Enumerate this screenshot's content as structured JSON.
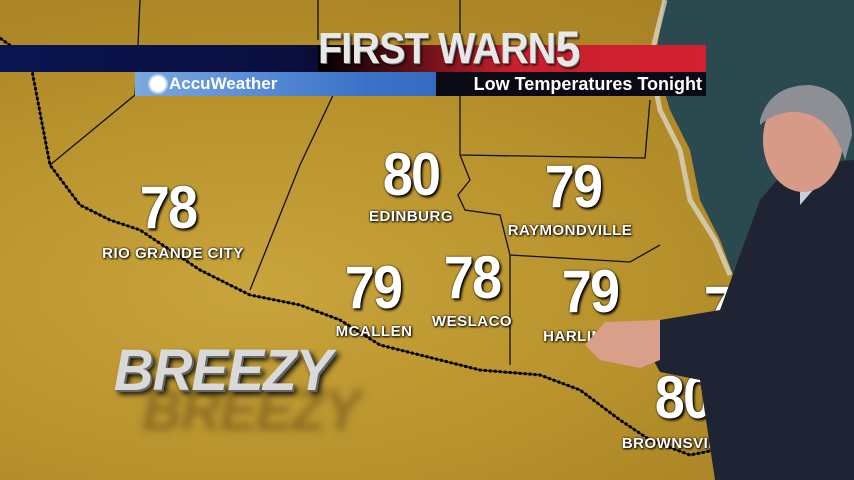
{
  "banner": {
    "brand": "FIRST WARN",
    "brand_number": "5",
    "provider": "AccuWeather",
    "provider_icon": "sun-icon",
    "title": "Low Temperatures Tonight"
  },
  "colors": {
    "land": "#b8922c",
    "sea": "#2a4a50",
    "banner_red": "#d42030",
    "banner_blue": "#3b73c8",
    "navy": "#0a1450"
  },
  "map": {
    "cities": [
      {
        "name": "RIO GRANDE CITY",
        "temp": "78"
      },
      {
        "name": "EDINBURG",
        "temp": "80"
      },
      {
        "name": "RAYMONDVILLE",
        "temp": "79"
      },
      {
        "name": "MCALLEN",
        "temp": "79"
      },
      {
        "name": "WESLACO",
        "temp": "78"
      },
      {
        "name": "HARLINGEN",
        "temp": "79"
      },
      {
        "name": "",
        "temp": "7"
      },
      {
        "name": "BROWNSVILLE",
        "temp": "80"
      }
    ],
    "condition": "BREEZY"
  }
}
